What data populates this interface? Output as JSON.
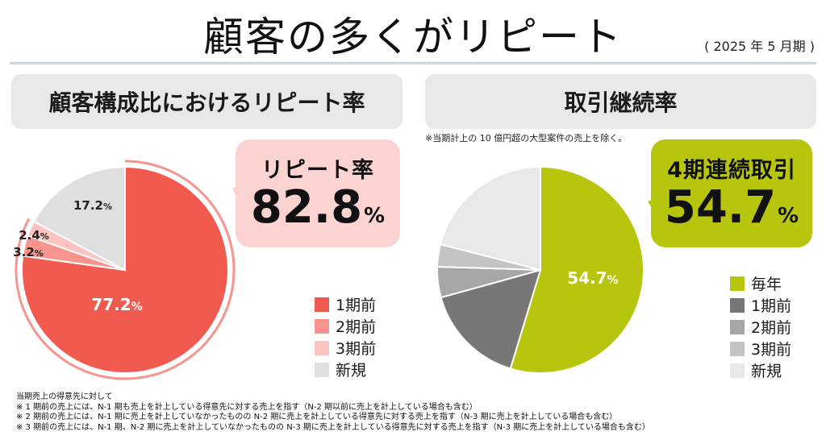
{
  "header": {
    "title": "顧客の多くがリピート",
    "period": "( 2025 年 5 月期 )"
  },
  "left_panel": {
    "heading": "顧客構成比におけるリピート率",
    "callout_label": "リピート率",
    "callout_value": "82.8",
    "callout_unit": "%"
  },
  "right_panel": {
    "heading": "取引継続率",
    "note": "※当期計上の 10 億円超の大型案件の売上を除く。",
    "callout_label": "4期連続取引",
    "callout_value": "54.7",
    "callout_unit": "%"
  },
  "chart_data": [
    {
      "type": "pie",
      "title": "顧客構成比におけるリピート率",
      "categories": [
        "1期前",
        "2期前",
        "3期前",
        "新規"
      ],
      "values": [
        77.2,
        3.2,
        2.4,
        17.2
      ],
      "colors": [
        "#f15a4f",
        "#f6948d",
        "#fbc4c0",
        "#dfdfdf"
      ],
      "data_labels": [
        "77.2",
        "3.2",
        "2.4",
        "17.2"
      ],
      "label_unit": "%",
      "legend_position": "right"
    },
    {
      "type": "pie",
      "title": "取引継続率",
      "categories": [
        "毎年",
        "1期前",
        "2期前",
        "3期前",
        "新規"
      ],
      "values": [
        54.7,
        16.0,
        4.8,
        3.5,
        21.0
      ],
      "colors": [
        "#b7c50c",
        "#777777",
        "#a6a6a6",
        "#c4c4c4",
        "#e8e8e8"
      ],
      "data_labels": [
        "54.7",
        "",
        "",
        "",
        ""
      ],
      "label_unit": "%",
      "legend_position": "right"
    }
  ],
  "footnotes": [
    "当期売上の得意先に対して",
    "※ 1 期前の売上には、N-1 期も売上を計上している得意先に対する売上を指す（N-2 期以前に売上を計上している場合も含む）",
    "※ 2 期前の売上には、N-1 期に売上を計上していなかったものの N-2 期に売上を計上している得意先に対する売上を指す（N-3 期に売上を計上している場合も含む）",
    "※ 3 期前の売上には、N-1 期、N-2 期に売上を計上していなかったものの N-3 期に売上を計上している得意先に対する売上を指す（N-3 期に売上を計上している場合も含む）"
  ]
}
